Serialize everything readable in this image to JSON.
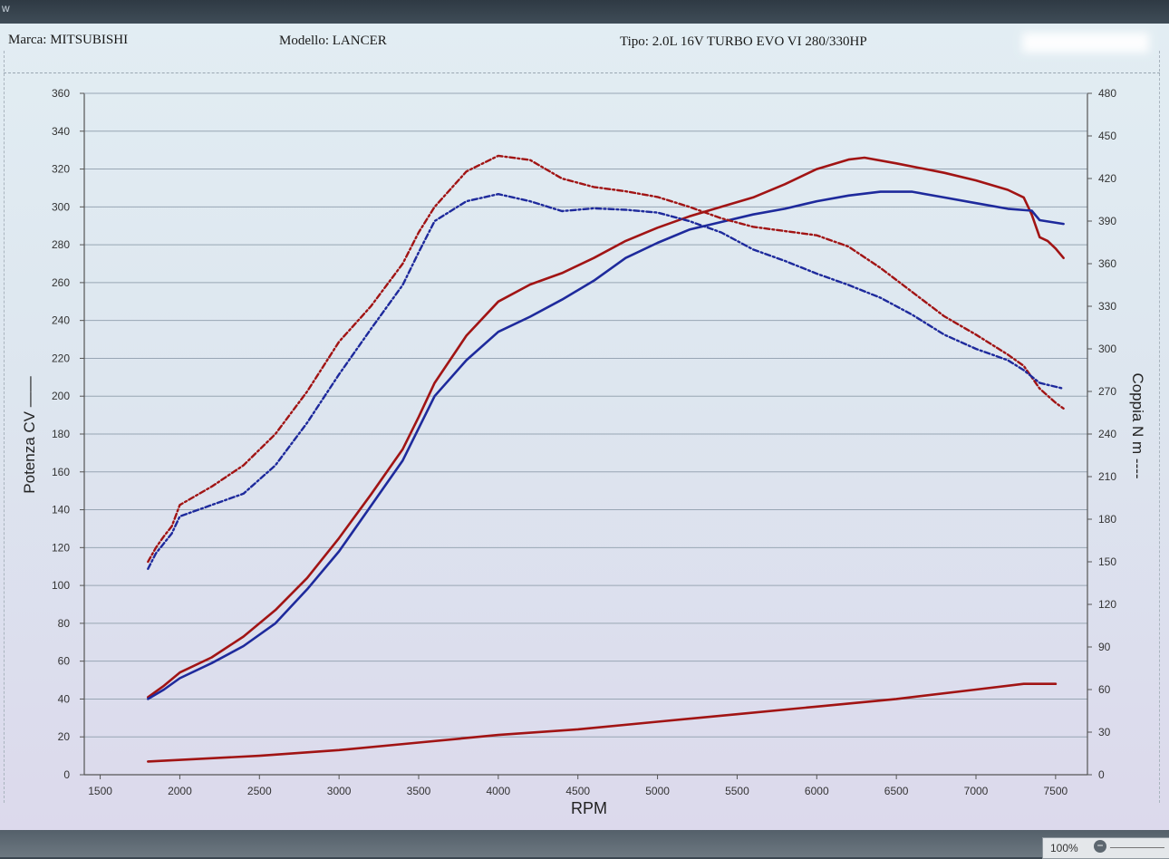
{
  "window": {
    "title_fragment": "w",
    "zoom_label": "100%"
  },
  "header": {
    "marca": "Marca: MITSUBISHI",
    "modello": "Modello: LANCER",
    "tipo": "Tipo: 2.0L 16V TURBO EVO VI 280/330HP"
  },
  "chart_data": {
    "type": "line",
    "xlabel": "RPM",
    "ylabel_left": "Potenza CV ——",
    "ylabel_right": "Coppia N m ----",
    "xlim": [
      1400,
      7700
    ],
    "ylim_left": [
      0,
      360
    ],
    "ylim_right": [
      0,
      480
    ],
    "x_ticks": [
      1500,
      2000,
      2500,
      3000,
      3500,
      4000,
      4500,
      5000,
      5500,
      6000,
      6500,
      7000,
      7500
    ],
    "y_ticks_left": [
      0,
      20,
      40,
      60,
      80,
      100,
      120,
      140,
      160,
      180,
      200,
      220,
      240,
      260,
      280,
      300,
      320,
      340,
      360
    ],
    "y_ticks_right": [
      0,
      30,
      60,
      90,
      120,
      150,
      180,
      210,
      240,
      270,
      300,
      330,
      360,
      390,
      420,
      450,
      480
    ],
    "grid": true,
    "colors": {
      "red": "#a11414",
      "blue": "#1e2a9c",
      "grid": "#98a6b4",
      "axis": "#555555"
    },
    "series": [
      {
        "axis": "left",
        "style": "solid",
        "color": "#a11414",
        "points": [
          [
            1800,
            41
          ],
          [
            1900,
            47
          ],
          [
            2000,
            54
          ],
          [
            2200,
            62
          ],
          [
            2400,
            73
          ],
          [
            2600,
            87
          ],
          [
            2800,
            104
          ],
          [
            3000,
            125
          ],
          [
            3200,
            148
          ],
          [
            3400,
            172
          ],
          [
            3500,
            189
          ],
          [
            3600,
            207
          ],
          [
            3800,
            232
          ],
          [
            4000,
            250
          ],
          [
            4200,
            259
          ],
          [
            4400,
            265
          ],
          [
            4600,
            273
          ],
          [
            4800,
            282
          ],
          [
            5000,
            289
          ],
          [
            5200,
            295
          ],
          [
            5400,
            300
          ],
          [
            5600,
            305
          ],
          [
            5800,
            312
          ],
          [
            6000,
            320
          ],
          [
            6200,
            325
          ],
          [
            6300,
            326
          ],
          [
            6500,
            323
          ],
          [
            6800,
            318
          ],
          [
            7000,
            314
          ],
          [
            7200,
            309
          ],
          [
            7300,
            305
          ],
          [
            7350,
            296
          ],
          [
            7400,
            284
          ],
          [
            7450,
            282
          ],
          [
            7500,
            278
          ],
          [
            7550,
            273
          ]
        ]
      },
      {
        "axis": "left",
        "style": "solid",
        "color": "#1e2a9c",
        "points": [
          [
            1800,
            40
          ],
          [
            1900,
            45
          ],
          [
            2000,
            51
          ],
          [
            2200,
            59
          ],
          [
            2400,
            68
          ],
          [
            2600,
            80
          ],
          [
            2800,
            98
          ],
          [
            3000,
            118
          ],
          [
            3200,
            142
          ],
          [
            3400,
            166
          ],
          [
            3500,
            183
          ],
          [
            3600,
            200
          ],
          [
            3800,
            219
          ],
          [
            4000,
            234
          ],
          [
            4200,
            242
          ],
          [
            4400,
            251
          ],
          [
            4600,
            261
          ],
          [
            4800,
            273
          ],
          [
            5000,
            281
          ],
          [
            5200,
            288
          ],
          [
            5400,
            292
          ],
          [
            5600,
            296
          ],
          [
            5800,
            299
          ],
          [
            6000,
            303
          ],
          [
            6200,
            306
          ],
          [
            6400,
            308
          ],
          [
            6600,
            308
          ],
          [
            6800,
            305
          ],
          [
            7000,
            302
          ],
          [
            7200,
            299
          ],
          [
            7350,
            298
          ],
          [
            7400,
            293
          ],
          [
            7550,
            291
          ]
        ]
      },
      {
        "axis": "right",
        "style": "dashdot",
        "color": "#a11414",
        "points": [
          [
            1800,
            150
          ],
          [
            1850,
            160
          ],
          [
            1900,
            168
          ],
          [
            1950,
            175
          ],
          [
            2000,
            190
          ],
          [
            2200,
            203
          ],
          [
            2400,
            218
          ],
          [
            2600,
            240
          ],
          [
            2800,
            270
          ],
          [
            3000,
            305
          ],
          [
            3200,
            330
          ],
          [
            3400,
            360
          ],
          [
            3500,
            382
          ],
          [
            3600,
            400
          ],
          [
            3800,
            425
          ],
          [
            4000,
            436
          ],
          [
            4200,
            433
          ],
          [
            4400,
            420
          ],
          [
            4600,
            414
          ],
          [
            4800,
            411
          ],
          [
            5000,
            407
          ],
          [
            5200,
            400
          ],
          [
            5400,
            392
          ],
          [
            5600,
            386
          ],
          [
            5800,
            383
          ],
          [
            6000,
            380
          ],
          [
            6200,
            372
          ],
          [
            6400,
            357
          ],
          [
            6600,
            340
          ],
          [
            6800,
            323
          ],
          [
            7000,
            310
          ],
          [
            7200,
            296
          ],
          [
            7300,
            288
          ],
          [
            7350,
            280
          ],
          [
            7400,
            272
          ],
          [
            7500,
            262
          ],
          [
            7550,
            258
          ]
        ]
      },
      {
        "axis": "right",
        "style": "dashdot",
        "color": "#1e2a9c",
        "points": [
          [
            1800,
            145
          ],
          [
            1850,
            156
          ],
          [
            1900,
            163
          ],
          [
            1950,
            170
          ],
          [
            2000,
            182
          ],
          [
            2200,
            190
          ],
          [
            2400,
            198
          ],
          [
            2600,
            218
          ],
          [
            2800,
            248
          ],
          [
            3000,
            282
          ],
          [
            3200,
            314
          ],
          [
            3400,
            345
          ],
          [
            3500,
            368
          ],
          [
            3600,
            390
          ],
          [
            3800,
            404
          ],
          [
            4000,
            409
          ],
          [
            4200,
            404
          ],
          [
            4400,
            397
          ],
          [
            4600,
            399
          ],
          [
            4800,
            398
          ],
          [
            5000,
            396
          ],
          [
            5200,
            390
          ],
          [
            5400,
            382
          ],
          [
            5600,
            370
          ],
          [
            5800,
            362
          ],
          [
            6000,
            353
          ],
          [
            6200,
            345
          ],
          [
            6400,
            336
          ],
          [
            6600,
            324
          ],
          [
            6800,
            310
          ],
          [
            7000,
            300
          ],
          [
            7200,
            292
          ],
          [
            7300,
            285
          ],
          [
            7400,
            276
          ],
          [
            7550,
            272
          ]
        ]
      },
      {
        "axis": "left",
        "style": "solid",
        "color": "#a11414",
        "points": [
          [
            1800,
            7
          ],
          [
            2500,
            10
          ],
          [
            3000,
            13
          ],
          [
            3500,
            17
          ],
          [
            4000,
            21
          ],
          [
            4500,
            24
          ],
          [
            5000,
            28
          ],
          [
            5500,
            32
          ],
          [
            6000,
            36
          ],
          [
            6500,
            40
          ],
          [
            7000,
            45
          ],
          [
            7300,
            48
          ],
          [
            7500,
            48
          ]
        ]
      }
    ]
  }
}
